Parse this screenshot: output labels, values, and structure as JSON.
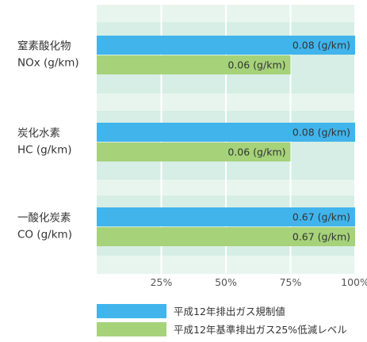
{
  "chart_data": {
    "type": "bar",
    "orientation": "horizontal",
    "categories": [
      {
        "name": "窒素酸化物",
        "unit": "NOx (g/km)"
      },
      {
        "name": "炭化水素",
        "unit": "HC (g/km)"
      },
      {
        "name": "一酸化炭素",
        "unit": "CO (g/km)"
      }
    ],
    "series": [
      {
        "name": "平成12年排出ガス規制値",
        "color": "#41b4ec",
        "values": [
          100,
          100,
          100
        ],
        "labels": [
          "0.08 (g/km)",
          "0.08 (g/km)",
          "0.67 (g/km)"
        ]
      },
      {
        "name": "平成12年基準排出ガス25%低減レベル",
        "color": "#a6d27a",
        "values": [
          75,
          75,
          100
        ],
        "labels": [
          "0.06 (g/km)",
          "0.06 (g/km)",
          "0.67 (g/km)"
        ]
      }
    ],
    "xlim": [
      0,
      100
    ],
    "xticks": [
      "25%",
      "50%",
      "75%",
      "100%"
    ],
    "xtick_values": [
      25,
      50,
      75,
      100
    ],
    "grid": true,
    "background_color": "#d6eee5",
    "grid_color": "#ffffff",
    "legend_position": "bottom"
  }
}
